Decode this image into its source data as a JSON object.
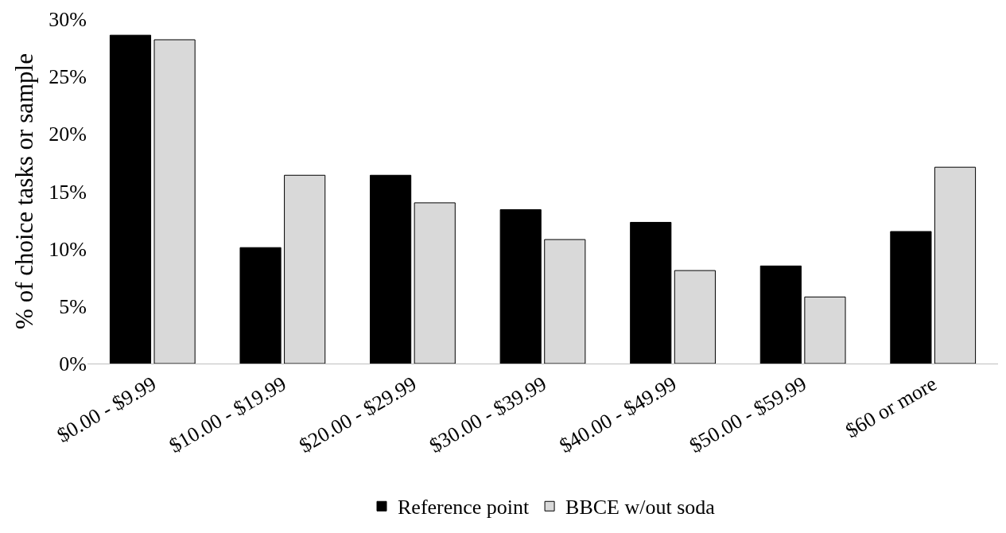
{
  "chart_data": {
    "type": "bar",
    "ylabel": "% of choice tasks or sample",
    "categories": [
      "$0.00 - $9.99",
      "$10.00 - $19.99",
      "$20.00 - $29.99",
      "$30.00 - $39.99",
      "$40.00 - $49.99",
      "$50.00 - $59.99",
      "$60 or more"
    ],
    "series": [
      {
        "name": "Reference point",
        "color": "#000000",
        "values": [
          28.6,
          10.1,
          16.4,
          13.4,
          12.3,
          8.5,
          11.5
        ]
      },
      {
        "name": "BBCE w/out soda",
        "color": "#d9d9d9",
        "values": [
          28.2,
          16.4,
          14.0,
          10.8,
          8.1,
          5.8,
          17.1
        ]
      }
    ],
    "ylim": [
      0,
      30
    ],
    "yticks": [
      {
        "value": 0,
        "label": "0%"
      },
      {
        "value": 5,
        "label": "5%"
      },
      {
        "value": 10,
        "label": "10%"
      },
      {
        "value": 15,
        "label": "15%"
      },
      {
        "value": 20,
        "label": "20%"
      },
      {
        "value": 25,
        "label": "25%"
      },
      {
        "value": 30,
        "label": "30%"
      }
    ],
    "legend": "bottom"
  }
}
